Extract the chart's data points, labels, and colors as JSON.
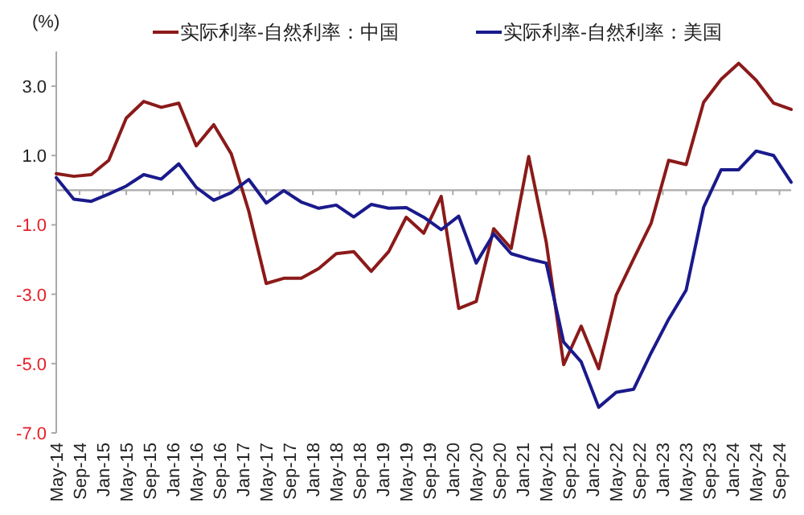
{
  "chart_data": {
    "type": "line",
    "ylabel": "(%)",
    "x": [
      "2014-05",
      "2014-08",
      "2014-11",
      "2015-02",
      "2015-05",
      "2015-08",
      "2015-11",
      "2016-02",
      "2016-05",
      "2016-08",
      "2016-11",
      "2017-02",
      "2017-05",
      "2017-08",
      "2017-11",
      "2018-02",
      "2018-05",
      "2018-08",
      "2018-11",
      "2019-02",
      "2019-05",
      "2019-08",
      "2019-11",
      "2020-02",
      "2020-05",
      "2020-08",
      "2020-11",
      "2021-02",
      "2021-05",
      "2021-08",
      "2021-11",
      "2022-02",
      "2022-05",
      "2022-08",
      "2022-11",
      "2023-02",
      "2023-05",
      "2023-08",
      "2023-11",
      "2024-02",
      "2024-05",
      "2024-08",
      "2024-11"
    ],
    "series": [
      {
        "name": "实际利率-自然利率：中国",
        "color": "#8b1a1a",
        "values": [
          0.48,
          0.4,
          0.45,
          0.86,
          2.08,
          2.56,
          2.39,
          2.51,
          1.28,
          1.89,
          1.05,
          -0.6,
          -2.69,
          -2.54,
          -2.54,
          -2.26,
          -1.83,
          -1.77,
          -2.34,
          -1.77,
          -0.78,
          -1.24,
          -0.18,
          -3.41,
          -3.21,
          -1.11,
          -1.68,
          0.97,
          -1.49,
          -5.03,
          -3.92,
          -5.15,
          -3.03,
          -1.98,
          -0.95,
          0.86,
          0.74,
          2.54,
          3.2,
          3.66,
          3.17,
          2.51,
          2.33
        ]
      },
      {
        "name": "实际利率-自然利率：美国",
        "color": "#1a1a8c",
        "values": [
          0.36,
          -0.26,
          -0.32,
          -0.11,
          0.12,
          0.45,
          0.32,
          0.76,
          0.08,
          -0.29,
          -0.07,
          0.31,
          -0.37,
          -0.01,
          -0.34,
          -0.52,
          -0.43,
          -0.77,
          -0.41,
          -0.52,
          -0.5,
          -0.78,
          -1.14,
          -0.75,
          -2.1,
          -1.26,
          -1.83,
          -1.98,
          -2.1,
          -4.38,
          -4.95,
          -6.26,
          -5.83,
          -5.74,
          -4.69,
          -3.72,
          -2.88,
          -0.49,
          0.59,
          0.59,
          1.13,
          1.0,
          0.23
        ]
      }
    ],
    "xlim": [
      "2014-05",
      "2024-11"
    ],
    "xticks": [
      {
        "value": "2014-05",
        "label": "May-14"
      },
      {
        "value": "2014-09",
        "label": "Sep-14"
      },
      {
        "value": "2015-01",
        "label": "Jan-15"
      },
      {
        "value": "2015-05",
        "label": "May-15"
      },
      {
        "value": "2015-09",
        "label": "Sep-15"
      },
      {
        "value": "2016-01",
        "label": "Jan-16"
      },
      {
        "value": "2016-05",
        "label": "May-16"
      },
      {
        "value": "2016-09",
        "label": "Sep-16"
      },
      {
        "value": "2017-01",
        "label": "Jan-17"
      },
      {
        "value": "2017-05",
        "label": "May-17"
      },
      {
        "value": "2017-09",
        "label": "Sep-17"
      },
      {
        "value": "2018-01",
        "label": "Jan-18"
      },
      {
        "value": "2018-05",
        "label": "May-18"
      },
      {
        "value": "2018-09",
        "label": "Sep-18"
      },
      {
        "value": "2019-01",
        "label": "Jan-19"
      },
      {
        "value": "2019-05",
        "label": "May-19"
      },
      {
        "value": "2019-09",
        "label": "Sep-19"
      },
      {
        "value": "2020-01",
        "label": "Jan-20"
      },
      {
        "value": "2020-05",
        "label": "May-20"
      },
      {
        "value": "2020-09",
        "label": "Sep-20"
      },
      {
        "value": "2021-01",
        "label": "Jan-21"
      },
      {
        "value": "2021-05",
        "label": "May-21"
      },
      {
        "value": "2021-09",
        "label": "Sep-21"
      },
      {
        "value": "2022-01",
        "label": "Jan-22"
      },
      {
        "value": "2022-05",
        "label": "May-22"
      },
      {
        "value": "2022-09",
        "label": "Sep-22"
      },
      {
        "value": "2023-01",
        "label": "Jan-23"
      },
      {
        "value": "2023-05",
        "label": "May-23"
      },
      {
        "value": "2023-09",
        "label": "Sep-23"
      },
      {
        "value": "2024-01",
        "label": "Jan-24"
      },
      {
        "value": "2024-05",
        "label": "May-24"
      },
      {
        "value": "2024-09",
        "label": "Sep-24"
      }
    ],
    "ylim": [
      -7,
      4
    ],
    "yticks": [
      {
        "value": 3,
        "label": "3.0"
      },
      {
        "value": 1,
        "label": "1.0"
      },
      {
        "value": -1,
        "label": "-1.0"
      },
      {
        "value": -3,
        "label": "-3.0"
      },
      {
        "value": -5,
        "label": "-5.0"
      },
      {
        "value": -7,
        "label": "-7.0"
      }
    ],
    "legend": "top",
    "grid": false,
    "marker": "none",
    "line_style": "solid"
  }
}
